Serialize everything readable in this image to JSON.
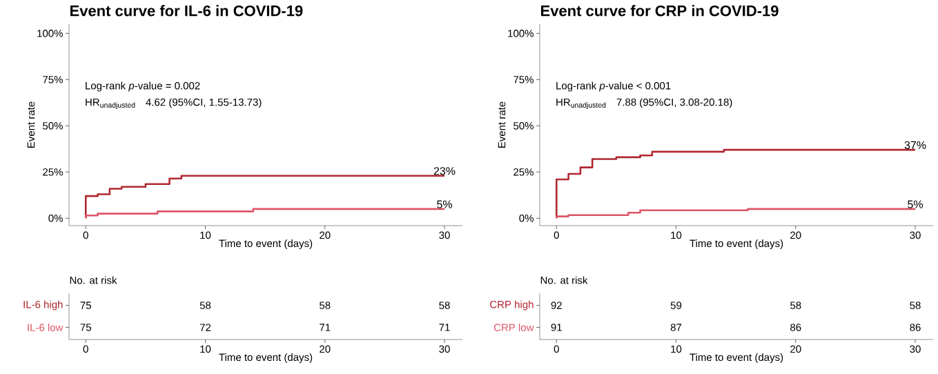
{
  "chart_data": [
    {
      "type": "step",
      "title": "Event curve for IL-6 in COVID-19",
      "xlabel": "Time to event (days)",
      "ylabel": "Event rate",
      "xlim": [
        -1.4,
        31.5
      ],
      "xticks": [
        0,
        10,
        20,
        30
      ],
      "ylim": [
        -4,
        105
      ],
      "yticks": [
        {
          "value": 0,
          "label": "0%"
        },
        {
          "value": 25,
          "label": "25%"
        },
        {
          "value": 50,
          "label": "50%"
        },
        {
          "value": 75,
          "label": "75%"
        },
        {
          "value": 100,
          "label": "100%"
        }
      ],
      "series": [
        {
          "color": "#b0272f",
          "x": [
            0,
            0,
            1,
            2,
            3,
            5,
            7,
            8,
            30
          ],
          "values": [
            0,
            12,
            13,
            16,
            17,
            18.5,
            21.5,
            23,
            23
          ]
        },
        {
          "color": "#dd5566",
          "x": [
            0,
            0,
            1,
            6,
            14,
            30
          ],
          "values": [
            0,
            1.5,
            2.5,
            3.7,
            5,
            5
          ]
        }
      ],
      "annotations": [
        "Log-rank *p*-value = 0.002",
        "\\mathrm{HR}_{\\mathrm{unadjusted}}",
        "4.62 (95%CI, 1.55-13.73)",
        "23%",
        "5%"
      ]
    },
    {
      "type": "heatmap",
      "title": "No. at risk",
      "xlabel": "Time to event (days)",
      "categories": [
        "0",
        "10",
        "20",
        "30"
      ],
      "y_categories": [
        "IL-6 high",
        "IL-6 low"
      ],
      "colors": [
        "#b0272f",
        "#dd5566"
      ],
      "cells": [
        [
          75,
          58,
          58,
          58
        ],
        [
          75,
          72,
          71,
          71
        ]
      ],
      "data_labels": true
    },
    {
      "type": "step",
      "title": "Event curve for CRP in COVID-19",
      "xlabel": "Time to event (days)",
      "ylabel": "Event rate",
      "xlim": [
        -1.4,
        31.5
      ],
      "xticks": [
        0,
        10,
        20,
        30
      ],
      "ylim": [
        -4,
        105
      ],
      "yticks": [
        {
          "value": 0,
          "label": "0%"
        },
        {
          "value": 25,
          "label": "25%"
        },
        {
          "value": 50,
          "label": "50%"
        },
        {
          "value": 75,
          "label": "75%"
        },
        {
          "value": 100,
          "label": "100%"
        }
      ],
      "series": [
        {
          "color": "#b0272f",
          "x": [
            0,
            0,
            1,
            2,
            3,
            5,
            7,
            8,
            14,
            30
          ],
          "values": [
            0,
            21,
            24,
            27.5,
            32,
            33,
            34,
            36,
            37,
            37
          ]
        },
        {
          "color": "#dd5566",
          "x": [
            0,
            0,
            1,
            6,
            7,
            16,
            30
          ],
          "values": [
            0,
            1,
            1.7,
            3,
            4.3,
            5,
            5
          ]
        }
      ],
      "annotations": [
        "Log-rank *p*-value < 0.001",
        "\\mathrm{HR}_{\\mathrm{unadjusted}}",
        "7.88 (95%CI, 3.08-20.18)",
        "37%",
        "5%"
      ]
    },
    {
      "type": "heatmap",
      "title": "No. at risk",
      "xlabel": "Time to event (days)",
      "categories": [
        "0",
        "10",
        "20",
        "30"
      ],
      "y_categories": [
        "CRP high",
        "CRP low"
      ],
      "colors": [
        "#b0272f",
        "#dd5566"
      ],
      "cells": [
        [
          92,
          59,
          58,
          58
        ],
        [
          91,
          87,
          86,
          86
        ]
      ],
      "data_labels": true
    }
  ]
}
